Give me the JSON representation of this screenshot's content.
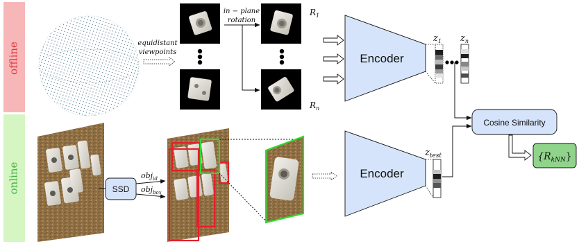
{
  "stages": {
    "offline": "offline",
    "online": "online"
  },
  "labels": {
    "equidistant": "equidistant",
    "viewpoints": "viewpoints",
    "in_plane": "in − plane",
    "rotation": "rotation",
    "r1": "R",
    "r1_sub": "1",
    "rn": "R",
    "rn_sub": "n",
    "ssd": "SSD",
    "obj_id": "obj",
    "obj_id_sub": "id",
    "obj_box": "obj",
    "obj_box_sub": "box",
    "encoder_top": "Encoder",
    "encoder_bottom": "Encoder",
    "z1": "z",
    "z1_sub": "1",
    "zn": "z",
    "zn_sub": "n",
    "ztest": "z",
    "ztest_sub": "test",
    "cosine": "Cosine Similarity",
    "result_open": "{R",
    "result_sub": "kNN",
    "result_close": "}"
  },
  "colors": {
    "offline_band": "#f7b6b8",
    "offline_text": "#e0353b",
    "online_band": "#d5f5c3",
    "online_text": "#3fb33f",
    "encoder_fill": "#d6e4fb",
    "box_fill": "#d6e4fb",
    "result_fill": "#8fd48a",
    "green_box": "#2fdc2f",
    "red_box": "#e4202a"
  }
}
